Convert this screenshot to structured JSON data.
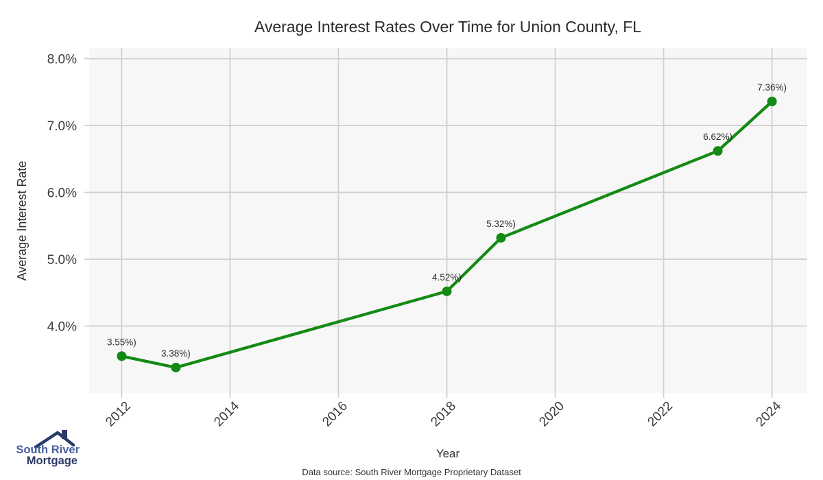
{
  "chart_data": {
    "type": "line",
    "title": "Average Interest Rates Over Time for Union County, FL",
    "xlabel": "Year",
    "ylabel": "Average Interest Rate",
    "x": [
      2012,
      2013,
      2018,
      2019,
      2023,
      2024
    ],
    "values": [
      3.55,
      3.38,
      4.52,
      5.32,
      6.62,
      7.36
    ],
    "point_labels": [
      "3.55%)",
      "3.38%)",
      "4.52%)",
      "5.32%)",
      "6.62%)",
      "7.36%)"
    ],
    "x_ticks": [
      2012,
      2014,
      2016,
      2018,
      2020,
      2022,
      2024
    ],
    "x_tick_labels": [
      "2012",
      "2014",
      "2016",
      "2018",
      "2020",
      "2022",
      "2024"
    ],
    "y_ticks": [
      4,
      5,
      6,
      7,
      8
    ],
    "y_tick_labels": [
      "4.0%",
      "5.0%",
      "6.0%",
      "7.0%",
      "8.0%"
    ],
    "xlim": [
      2011.4,
      2024.65
    ],
    "ylim": [
      3.0,
      8.16
    ],
    "grid": true,
    "legend": "none",
    "line_color": "#148a14",
    "marker_color": "#148a14",
    "plot_bg": "#f7f7f7",
    "grid_color": "#d0d0d0"
  },
  "footer": {
    "text": "Data source: South River Mortgage Proprietary Dataset"
  },
  "logo": {
    "line1": "South River",
    "line2": "Mortgage",
    "blue": "#4a5f9e",
    "navy": "#2b3a66"
  },
  "colors": {
    "title_text": "#2b2b2b",
    "tick_text": "#3a3a3a",
    "label_text": "#2e2e2e"
  }
}
